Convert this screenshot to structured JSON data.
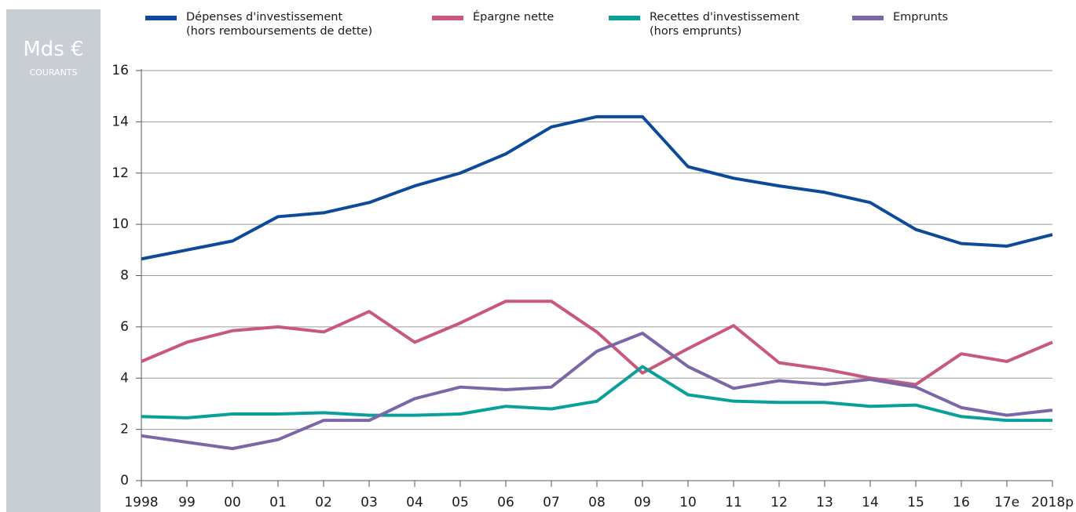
{
  "chart_data": {
    "type": "line",
    "y_unit": "Mds €",
    "y_unit_sub": "COURANTS",
    "categories": [
      "1998",
      "99",
      "00",
      "01",
      "02",
      "03",
      "04",
      "05",
      "06",
      "07",
      "08",
      "09",
      "10",
      "11",
      "12",
      "13",
      "14",
      "15",
      "16",
      "17e",
      "2018p"
    ],
    "series": [
      {
        "name": "Dépenses d'investissement\n(hors remboursements de dette)",
        "color": "#0d4a9a",
        "values": [
          8.65,
          9.0,
          9.35,
          10.3,
          10.45,
          10.85,
          11.5,
          12.0,
          12.75,
          13.8,
          14.2,
          14.2,
          12.25,
          11.8,
          11.5,
          11.25,
          10.85,
          9.8,
          9.25,
          9.15,
          9.6
        ]
      },
      {
        "name": "Épargne nette",
        "color": "#c9587f",
        "values": [
          4.65,
          5.4,
          5.85,
          6.0,
          5.8,
          6.6,
          5.4,
          6.15,
          7.0,
          7.0,
          5.8,
          4.2,
          5.15,
          6.05,
          4.6,
          4.35,
          4.0,
          3.75,
          4.95,
          4.65,
          5.4
        ]
      },
      {
        "name": "Recettes d'investissement\n(hors emprunts)",
        "color": "#0aa09a",
        "values": [
          2.5,
          2.45,
          2.6,
          2.6,
          2.65,
          2.55,
          2.55,
          2.6,
          2.9,
          2.8,
          3.1,
          4.45,
          3.35,
          3.1,
          3.05,
          3.05,
          2.9,
          2.95,
          2.5,
          2.35,
          2.35
        ]
      },
      {
        "name": "Emprunts",
        "color": "#7b66a8",
        "values": [
          1.75,
          1.5,
          1.25,
          1.6,
          2.35,
          2.35,
          3.2,
          3.65,
          3.55,
          3.65,
          5.05,
          5.75,
          4.45,
          3.6,
          3.9,
          3.75,
          3.95,
          3.65,
          2.85,
          2.55,
          2.75
        ]
      }
    ],
    "ylim": [
      0,
      16
    ],
    "yticks": [
      0,
      2,
      4,
      6,
      8,
      10,
      12,
      14,
      16
    ],
    "grid": true
  }
}
